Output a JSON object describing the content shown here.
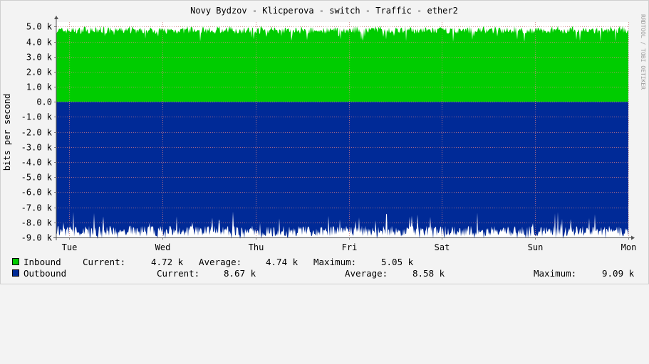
{
  "chart_data": {
    "type": "area",
    "title": "Novy Bydzov - Klicperova - switch - Traffic - ether2",
    "ylabel": "bits per second",
    "side_label": "RRDTOOL / TOBI OETIKER",
    "ylim": [
      -9000,
      5300
    ],
    "yticks": [
      5000,
      4000,
      3000,
      2000,
      1000,
      0,
      -1000,
      -2000,
      -3000,
      -4000,
      -5000,
      -6000,
      -7000,
      -8000,
      -9000
    ],
    "ytick_labels": [
      "5.0 k",
      "4.0 k",
      "3.0 k",
      "2.0 k",
      "1.0 k",
      "0.0",
      "-1.0 k",
      "-2.0 k",
      "-3.0 k",
      "-4.0 k",
      "-5.0 k",
      "-6.0 k",
      "-7.0 k",
      "-8.0 k",
      "-9.0 k"
    ],
    "x_categories": [
      "Tue",
      "Wed",
      "Thu",
      "Fri",
      "Sat",
      "Sun",
      "Mon"
    ],
    "grid": true,
    "series": [
      {
        "name": "Inbound",
        "color": "#00cc00",
        "direction": "positive",
        "current": 4720,
        "average": 4740,
        "maximum": 5050
      },
      {
        "name": "Outbound",
        "color": "#002a97",
        "direction": "negative",
        "current": 8670,
        "average": 8580,
        "maximum": 9090
      }
    ]
  },
  "legend": {
    "inbound": {
      "label": "Inbound",
      "current_label": "Current:",
      "current": "4.72 k",
      "average_label": "Average:",
      "average": "4.74 k",
      "maximum_label": "Maximum:",
      "maximum": "5.05 k"
    },
    "outbound": {
      "label": "Outbound",
      "current_label": "Current:",
      "current": "8.67 k",
      "average_label": "Average:",
      "average": "8.58 k",
      "maximum_label": "Maximum:",
      "maximum": "9.09 k"
    }
  }
}
